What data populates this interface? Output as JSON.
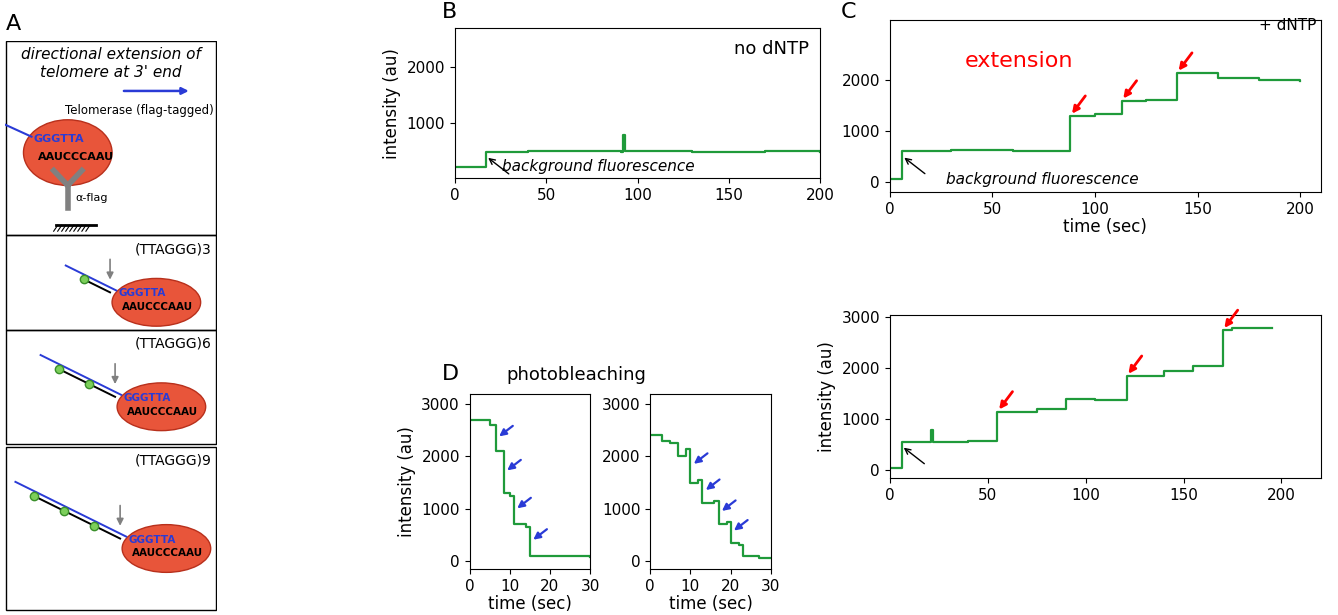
{
  "panel_labels": [
    "A",
    "B",
    "C",
    "D"
  ],
  "diagram": {
    "title": "directional extension of telomere at 3' end",
    "enzyme_label": "Telomerase (flag-tagged)",
    "dna_seq": "GGGTTA",
    "rna_seq": "AAUCCCAAU",
    "antibody": "α-flag",
    "steps": [
      "(TTAGGG)3",
      "(TTAGGG)6",
      "(TTAGGG)9"
    ]
  },
  "chart_data": [
    {
      "type": "line",
      "panel": "B",
      "line_style": "steps",
      "color": "#1f9a3a",
      "x": [
        0,
        17,
        40,
        91,
        92,
        93,
        130,
        170,
        200
      ],
      "values": [
        200,
        470,
        490,
        480,
        780,
        490,
        470,
        490,
        480
      ],
      "xlim": [
        0,
        200
      ],
      "ylim": [
        0,
        2700
      ],
      "xticks": [
        0,
        50,
        100,
        150,
        200
      ],
      "yticks": [
        1000,
        2000
      ],
      "ylabel": "intensity (au)",
      "annotations": [
        "no dNTP",
        "background fluorescence"
      ]
    },
    {
      "type": "line",
      "panel": "C",
      "line_style": "steps",
      "color": "#1f9a3a",
      "x": [
        0,
        6,
        30,
        60,
        88,
        100,
        113,
        125,
        140,
        160,
        180,
        200
      ],
      "values": [
        60,
        600,
        620,
        610,
        1300,
        1340,
        1600,
        1620,
        2150,
        2050,
        2000,
        1980
      ],
      "xlim": [
        0,
        210
      ],
      "ylim": [
        -200,
        3200
      ],
      "xticks": [
        0,
        50,
        100,
        150,
        200
      ],
      "yticks": [
        0,
        1000,
        2000
      ],
      "xlabel": "time (sec)",
      "annotations": [
        "extension",
        "+ dNTP",
        "background fluorescence"
      ]
    },
    {
      "type": "line",
      "panel": "C",
      "line_style": "steps",
      "color": "#1f9a3a",
      "x": [
        0,
        6,
        21,
        22,
        40,
        55,
        75,
        90,
        105,
        121,
        140,
        155,
        170,
        175,
        195
      ],
      "values": [
        40,
        560,
        780,
        560,
        580,
        1150,
        1200,
        1400,
        1380,
        1850,
        1950,
        2050,
        2750,
        2800,
        2800
      ],
      "xlim": [
        0,
        220
      ],
      "ylim": [
        -150,
        3050
      ],
      "xticks": [
        0,
        50,
        100,
        150,
        200
      ],
      "yticks": [
        0,
        1000,
        2000,
        3000
      ],
      "ylabel": "intensity (au)"
    },
    {
      "type": "line",
      "panel": "D",
      "line_style": "steps",
      "color": "#1f9a3a",
      "title": "photobleaching",
      "x": [
        0,
        5,
        6.5,
        8.5,
        10,
        11,
        14,
        15,
        30
      ],
      "values": [
        2700,
        2600,
        2100,
        1300,
        1250,
        700,
        650,
        100,
        80
      ],
      "xlim": [
        0,
        30
      ],
      "ylim": [
        -150,
        3200
      ],
      "xticks": [
        0,
        10,
        20,
        30
      ],
      "yticks": [
        0,
        1000,
        2000,
        3000
      ],
      "xlabel": "time (sec)",
      "ylabel": "intensity (au)"
    },
    {
      "type": "line",
      "panel": "D",
      "line_style": "steps",
      "color": "#1f9a3a",
      "x": [
        0,
        3,
        5,
        7,
        9,
        10,
        12,
        13,
        16,
        17,
        19,
        20,
        22,
        23,
        27,
        30
      ],
      "values": [
        2400,
        2300,
        2250,
        2000,
        2150,
        1500,
        1550,
        1100,
        1150,
        700,
        750,
        350,
        300,
        100,
        60,
        60
      ],
      "xlim": [
        0,
        30
      ],
      "ylim": [
        -150,
        3200
      ],
      "xticks": [
        0,
        10,
        20,
        30
      ],
      "yticks": [
        0,
        1000,
        2000,
        3000
      ],
      "xlabel": "time (sec)"
    }
  ]
}
